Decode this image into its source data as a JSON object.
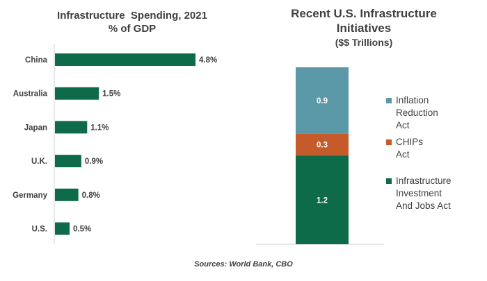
{
  "chart_data": [
    {
      "type": "bar",
      "orientation": "horizontal",
      "title": "Infrastructure  Spending, 2021",
      "subtitle": "% of GDP",
      "categories": [
        "China",
        "Australia",
        "Japan",
        "U.K.",
        "Germany",
        "U.S."
      ],
      "values": [
        4.8,
        1.5,
        1.1,
        0.9,
        0.8,
        0.5
      ],
      "value_labels": [
        "4.8%",
        "1.5%",
        "1.1%",
        "0.9%",
        "0.8%",
        "0.5%"
      ],
      "xlim": [
        0,
        4.8
      ],
      "grid": false,
      "color": "#0e6b4a"
    },
    {
      "type": "bar",
      "stacked": true,
      "title": "Recent U.S. Infrastructure Initiatives",
      "subtitle": "($$ Trillions)",
      "ylim": [
        0,
        2.4
      ],
      "grid": false,
      "legend_position": "right",
      "series": [
        {
          "name": "Infrastructure Investment And Jobs Act",
          "value": 1.2,
          "label": "1.2",
          "color": "#0e6b4a",
          "legend_lines": [
            "Infrastructure",
            "Investment",
            "And Jobs Act"
          ]
        },
        {
          "name": "CHIPs Act",
          "value": 0.3,
          "label": "0.3",
          "color": "#c55a2a",
          "legend_lines": [
            "CHIPs",
            "Act"
          ]
        },
        {
          "name": "Inflation Reduction Act",
          "value": 0.9,
          "label": "0.9",
          "color": "#5b98a8",
          "legend_lines": [
            "Inflation",
            "Reduction",
            "Act"
          ]
        }
      ]
    }
  ],
  "source": "Sources: World Bank, CBO"
}
